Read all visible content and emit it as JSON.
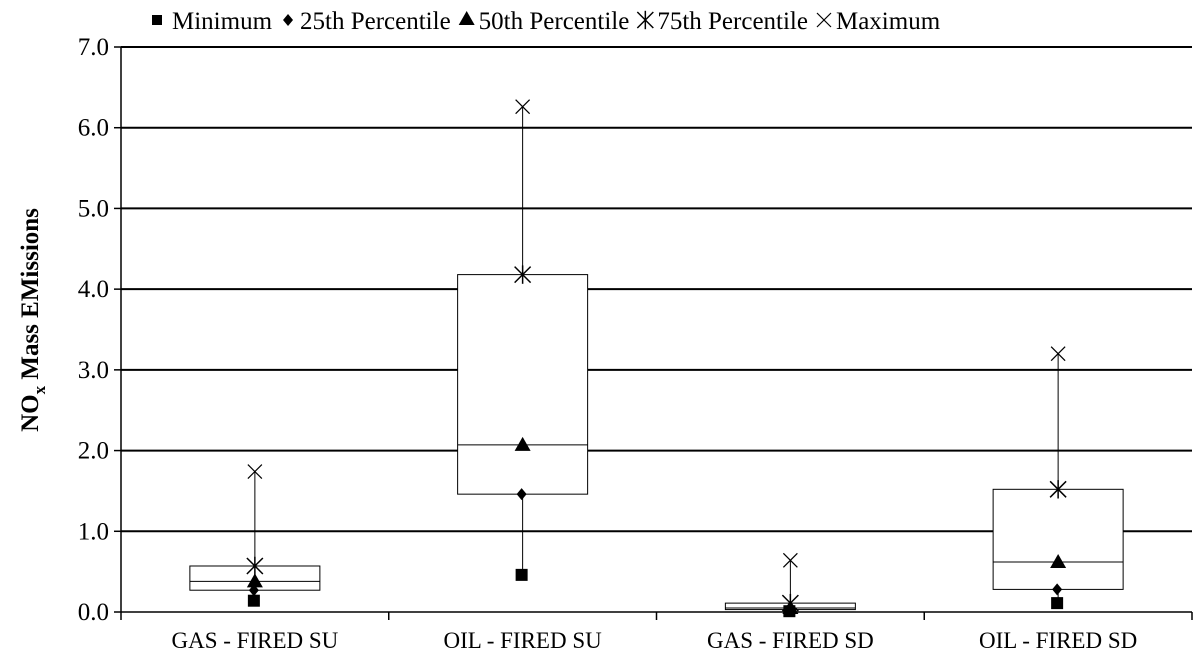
{
  "chart_data": {
    "type": "box",
    "title": "",
    "xlabel": "",
    "ylabel": {
      "main": "NO",
      "subscript": "x",
      "rest": " Mass EMissions"
    },
    "ylim": [
      0,
      7
    ],
    "yticks": [
      "0.0",
      "1.0",
      "2.0",
      "3.0",
      "4.0",
      "5.0",
      "6.0",
      "7.0"
    ],
    "grid": true,
    "legend_position": "top",
    "categories": [
      "GAS - FIRED SU",
      "OIL - FIRED SU",
      "GAS - FIRED SD",
      "OIL - FIRED SD"
    ],
    "series": [
      {
        "name": "Minimum",
        "marker": "square",
        "values": [
          0.14,
          0.46,
          0.01,
          0.11
        ]
      },
      {
        "name": "25th Percentile",
        "marker": "diamond",
        "values": [
          0.27,
          1.46,
          0.03,
          0.28
        ]
      },
      {
        "name": "50th Percentile",
        "marker": "triangle",
        "values": [
          0.38,
          2.07,
          0.05,
          0.62
        ]
      },
      {
        "name": "75th Percentile",
        "marker": "asterisk",
        "values": [
          0.57,
          4.18,
          0.11,
          1.52
        ]
      },
      {
        "name": "Maximum",
        "marker": "x",
        "values": [
          1.74,
          6.26,
          0.64,
          3.2
        ]
      }
    ]
  }
}
